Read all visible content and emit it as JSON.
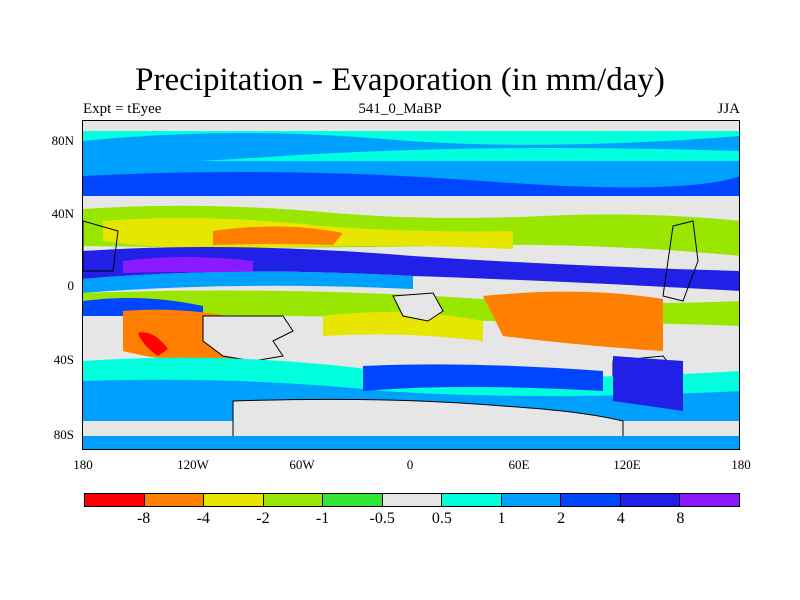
{
  "title": "Precipitation - Evaporation (in mm/day)",
  "subtitle_left": "Expt = tEyee",
  "subtitle_center": "541_0_MaBP",
  "subtitle_right": "JJA",
  "lat_labels": [
    "80N",
    "40N",
    "0",
    "40S",
    "80S"
  ],
  "lon_labels": [
    "180",
    "120W",
    "60W",
    "0",
    "60E",
    "120E",
    "180"
  ],
  "colorbar": {
    "colors": [
      "#ff0000",
      "#ff7f00",
      "#e6e600",
      "#99e600",
      "#33e633",
      "#e6e6e6",
      "#00ffdd",
      "#00a0ff",
      "#0046ff",
      "#2020e6",
      "#8c1aff"
    ],
    "labels": [
      "-8",
      "-4",
      "-2",
      "-1",
      "-0.5",
      "0.5",
      "1",
      "2",
      "4",
      "8"
    ]
  },
  "colors": {
    "land_fill": "#e6e6e6",
    "coastline": "#000000"
  }
}
